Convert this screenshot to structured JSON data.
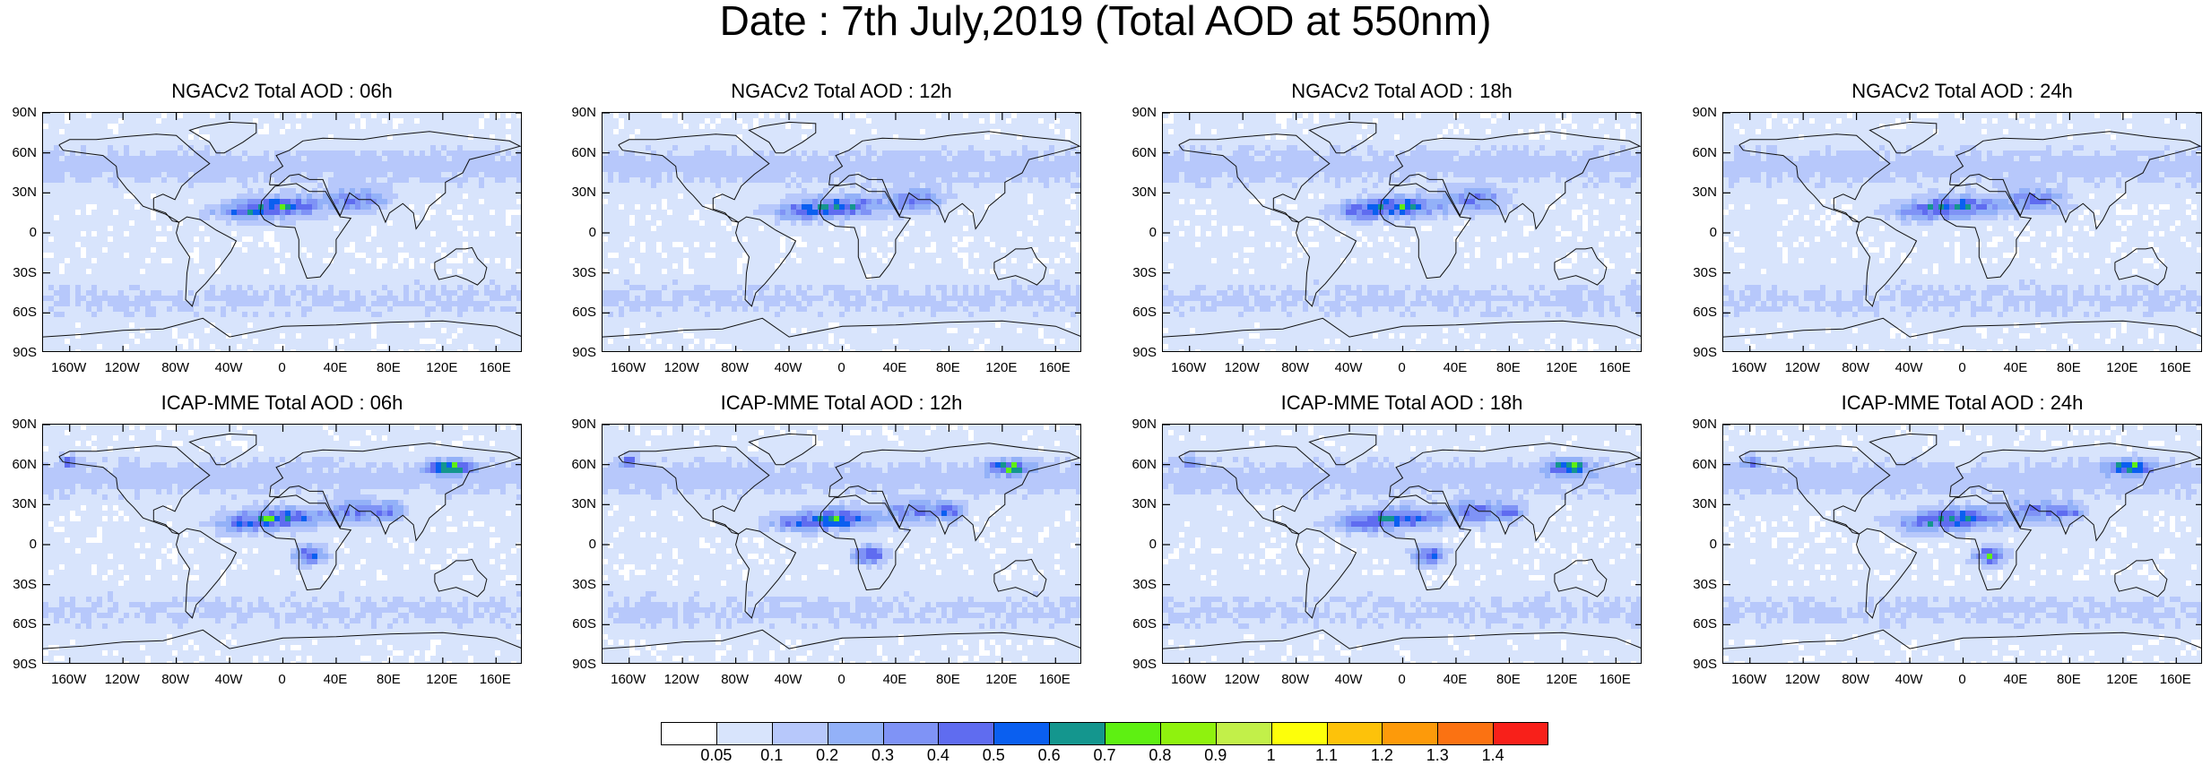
{
  "title": "Date : 7th July,2019 (Total AOD at 550nm)",
  "chart_data": {
    "type": "heatmap",
    "description_of_field": "Global maps of total aerosol optical depth at 550nm",
    "lat_ticks": [
      "90N",
      "60N",
      "30N",
      "0",
      "30S",
      "60S",
      "90S"
    ],
    "lat_values": [
      90,
      60,
      30,
      0,
      -30,
      -60,
      -90
    ],
    "lon_ticks": [
      "160W",
      "120W",
      "80W",
      "40W",
      "0",
      "40E",
      "80E",
      "120E",
      "160E"
    ],
    "lon_values": [
      -160,
      -120,
      -80,
      -40,
      0,
      40,
      80,
      120,
      160
    ],
    "lon_range": [
      -180,
      180
    ],
    "lat_range": [
      -90,
      90
    ],
    "panels": [
      {
        "title": "NGACv2 Total AOD : 06h",
        "model": "NGACv2",
        "hour": 6
      },
      {
        "title": "NGACv2 Total AOD : 12h",
        "model": "NGACv2",
        "hour": 12
      },
      {
        "title": "NGACv2 Total AOD : 18h",
        "model": "NGACv2",
        "hour": 18
      },
      {
        "title": "NGACv2 Total AOD : 24h",
        "model": "NGACv2",
        "hour": 24
      },
      {
        "title": "ICAP-MME Total AOD : 06h",
        "model": "ICAP-MME",
        "hour": 6
      },
      {
        "title": "ICAP-MME Total AOD : 12h",
        "model": "ICAP-MME",
        "hour": 12
      },
      {
        "title": "ICAP-MME Total AOD : 18h",
        "model": "ICAP-MME",
        "hour": 18
      },
      {
        "title": "ICAP-MME Total AOD : 24h",
        "model": "ICAP-MME",
        "hour": 24
      }
    ],
    "colorbar": {
      "levels": [
        "0.05",
        "0.1",
        "0.2",
        "0.3",
        "0.4",
        "0.5",
        "0.6",
        "0.7",
        "0.8",
        "0.9",
        "1",
        "1.1",
        "1.2",
        "1.3",
        "1.4"
      ],
      "colors": [
        "#ffffff",
        "#d8e4fc",
        "#b7c8fb",
        "#93b1f8",
        "#7f93f6",
        "#5f6cf0",
        "#0a5ff0",
        "#14968e",
        "#5ef012",
        "#8ff20e",
        "#c2f049",
        "#fdff0a",
        "#fdc20a",
        "#fd9a0a",
        "#fb7212",
        "#f8201a"
      ]
    }
  }
}
